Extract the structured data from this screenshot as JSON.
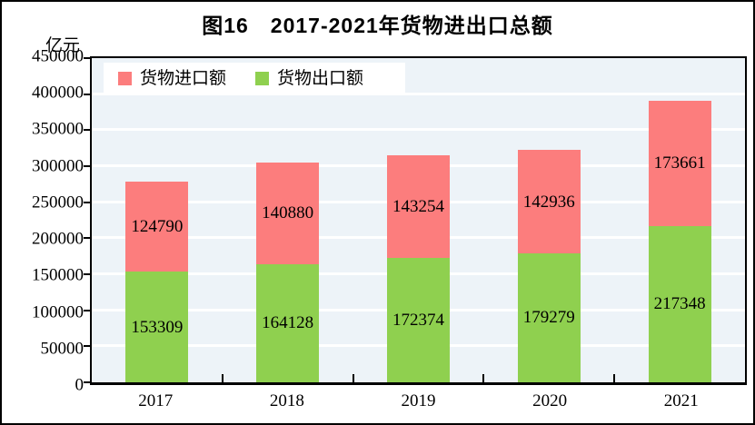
{
  "figure": {
    "title": "图16　2017-2021年货物进出口总额",
    "unit_label": "亿元"
  },
  "colors": {
    "import_bar": "#FC7D7D",
    "export_bar": "#8FD04F",
    "plot_background": "#EDF3F8",
    "gridline": "#FFFFFF",
    "axis_and_text": "#000000",
    "legend_background": "#FFFFFF"
  },
  "legend": {
    "items": [
      {
        "label": "货物进口额",
        "color": "#FC7D7D"
      },
      {
        "label": "货物出口额",
        "color": "#8FD04F"
      }
    ]
  },
  "chart_data": {
    "type": "bar",
    "stacked": true,
    "title": "图16　2017-2021年货物进出口总额",
    "ylabel": "亿元",
    "categories": [
      "2017",
      "2018",
      "2019",
      "2020",
      "2021"
    ],
    "series": [
      {
        "name": "货物出口额",
        "color": "#8FD04F",
        "values": [
          153309,
          164128,
          172374,
          179279,
          217348
        ]
      },
      {
        "name": "货物进口额",
        "color": "#FC7D7D",
        "values": [
          124790,
          140880,
          143254,
          142936,
          173661
        ]
      }
    ],
    "ylim": [
      0,
      450000
    ],
    "ytick_step": 50000,
    "yticks": [
      0,
      50000,
      100000,
      150000,
      200000,
      250000,
      300000,
      350000,
      400000,
      450000
    ],
    "grid": true,
    "legend_position": "top-left-inside",
    "value_labels": "centered-in-segment"
  }
}
